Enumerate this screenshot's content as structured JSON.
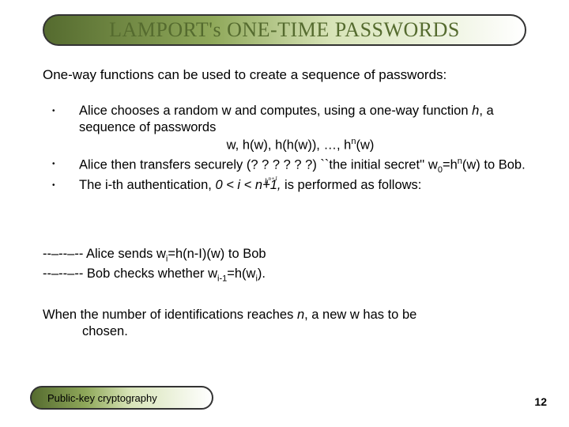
{
  "title": "LAMPORT's ONE-TIME PASSWORDS",
  "intro": "One-way functions can be used to create a sequence of passwords:",
  "bullets": {
    "b1_line1": "Alice chooses a random w and computes, using a one-way function ",
    "b1_line1_italic": "h",
    "b1_line1_tail": ", a sequence of passwords",
    "b1_center": "w, h(w), h(h(w)), …, h",
    "b1_center_sup": "n",
    "b1_center_tail": "(w)",
    "b2_a": "Alice then transfers securely (? ? ? ? ? ?) ``the initial secret'' w",
    "b2_sub0": "0",
    "b2_mid": "=h",
    "b2_supn": "n",
    "b2_tail": "(w) to Bob.",
    "b3_a": "The i-th  authentication, ",
    "b3_italic": "0 < i < n+1,",
    "b3_tail": " is performed as follows:"
  },
  "maybe": "h",
  "maybe_sup": "n+1",
  "dashed": {
    "d1_a": "--–--–-- Alice sends w",
    "d1_sub": "i",
    "d1_tail": "=h(n-I)(w) to Bob",
    "d2_a": "--–--–-- Bob checks whether w",
    "d2_sub": "i-1",
    "d2_mid": "=h(w",
    "d2_sub2": "i",
    "d2_tail": ")."
  },
  "closing_a": "When the number of identifications reaches ",
  "closing_italic": "n",
  "closing_b": ", a new w has to be",
  "closing_c": "chosen.",
  "footer": "Public-key cryptography",
  "page": "12",
  "colors": {
    "olive": "#556b2f",
    "border": "#333333",
    "text": "#000000",
    "bg": "#ffffff"
  }
}
